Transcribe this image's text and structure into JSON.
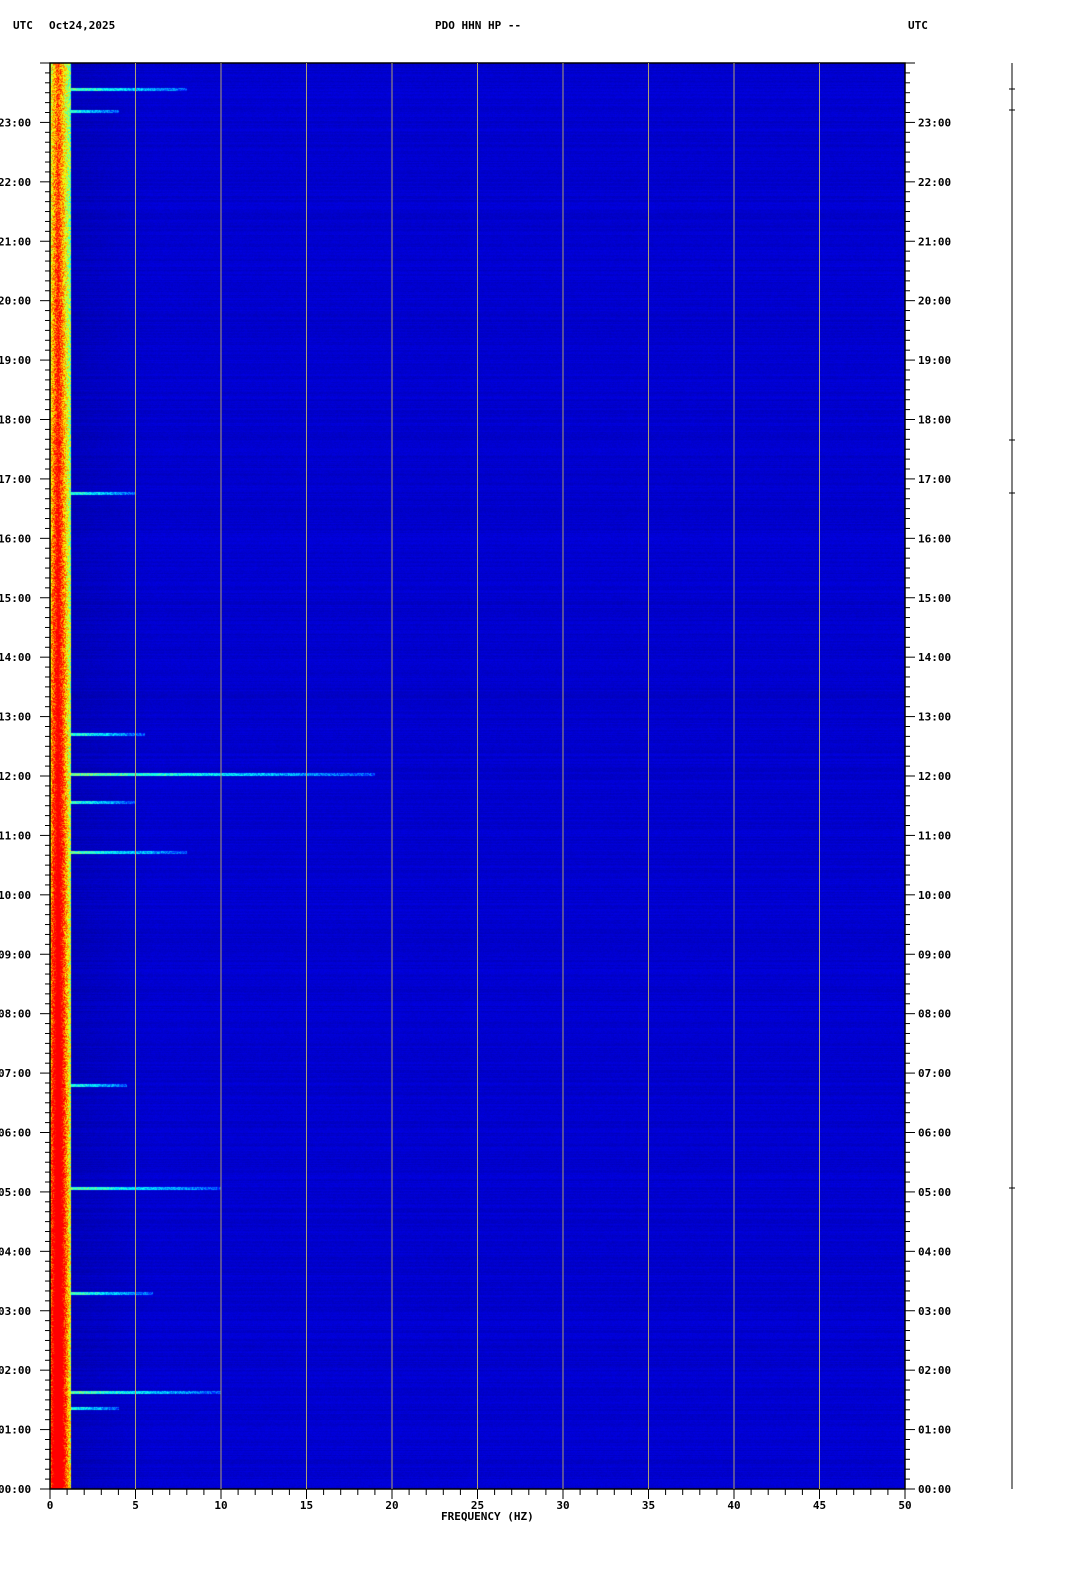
{
  "header": {
    "left_tz": "UTC",
    "date": "Oct24,2025",
    "title": "PDO HHN HP --",
    "right_tz": "UTC"
  },
  "chart_data": {
    "type": "heatmap",
    "title": "PDO HHN HP --",
    "xlabel": "FREQUENCY (HZ)",
    "xlim": [
      0,
      50
    ],
    "x_ticks": [
      "0",
      "5",
      "10",
      "15",
      "20",
      "25",
      "30",
      "35",
      "40",
      "45",
      "50"
    ],
    "ylim": [
      "00:00",
      "24:00"
    ],
    "y_ticks": [
      "00:00",
      "01:00",
      "02:00",
      "03:00",
      "04:00",
      "05:00",
      "06:00",
      "07:00",
      "08:00",
      "09:00",
      "10:00",
      "11:00",
      "12:00",
      "13:00",
      "14:00",
      "15:00",
      "16:00",
      "17:00",
      "18:00",
      "19:00",
      "20:00",
      "21:00",
      "22:00",
      "23:00"
    ],
    "colormap": [
      "#00009f",
      "#0000ff",
      "#00ffff",
      "#ffff00",
      "#ff0000"
    ],
    "background_color": "#0000a0",
    "low_frequency_band_hz": [
      0,
      1
    ],
    "events": [
      {
        "time": "01:22",
        "max_freq_hz": 4
      },
      {
        "time": "01:38",
        "max_freq_hz": 10
      },
      {
        "time": "03:18",
        "max_freq_hz": 6
      },
      {
        "time": "05:04",
        "max_freq_hz": 10
      },
      {
        "time": "06:48",
        "max_freq_hz": 4.5
      },
      {
        "time": "10:43",
        "max_freq_hz": 8
      },
      {
        "time": "11:34",
        "max_freq_hz": 5
      },
      {
        "time": "12:02",
        "max_freq_hz": 19
      },
      {
        "time": "12:42",
        "max_freq_hz": 5.5
      },
      {
        "time": "16:46",
        "max_freq_hz": 5
      },
      {
        "time": "23:12",
        "max_freq_hz": 4
      },
      {
        "time": "23:34",
        "max_freq_hz": 8
      }
    ]
  }
}
